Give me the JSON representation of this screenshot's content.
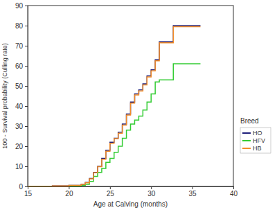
{
  "chart_data": {
    "type": "line",
    "x_label": "Age at Calving (months)",
    "y_label": "100 - Survival probability (Culling rate)",
    "legend_title": "Breed",
    "line_style": "step",
    "x": [
      15,
      18,
      20,
      21.5,
      22,
      22.5,
      23,
      23.5,
      24,
      24.5,
      25,
      25.5,
      26,
      26.5,
      27,
      27.5,
      28,
      28.5,
      29,
      29.5,
      30,
      30.5,
      31,
      32,
      32.7,
      36
    ],
    "series": [
      {
        "name": "HO",
        "color": "#1f1f7a",
        "values": [
          0,
          0.3,
          0.5,
          1,
          2,
          4,
          7,
          10,
          14,
          18,
          22,
          24,
          27,
          31,
          36,
          42,
          46,
          48,
          51,
          55,
          58,
          63,
          72,
          72,
          80,
          80
        ]
      },
      {
        "name": "HFV",
        "color": "#33cc33",
        "values": [
          0,
          0,
          0.3,
          0.5,
          1,
          2.5,
          5,
          7,
          9,
          12,
          14,
          17,
          20,
          24,
          28,
          31,
          33,
          35,
          38,
          42,
          46,
          52,
          53,
          53,
          61,
          61
        ]
      },
      {
        "name": "HB",
        "color": "#f28c28",
        "values": [
          0,
          0.3,
          0.5,
          1,
          1.8,
          3.8,
          6.8,
          9.8,
          13.5,
          17.5,
          21.5,
          23.8,
          26.5,
          30.5,
          35.5,
          41.5,
          45.5,
          47.5,
          50.5,
          54.5,
          57.5,
          62.5,
          71.5,
          71.5,
          79.5,
          79.5
        ]
      }
    ],
    "xlim": [
      15,
      40
    ],
    "xticks": [
      15,
      20,
      25,
      30,
      35,
      40
    ],
    "ylim": [
      0,
      90
    ],
    "yticks": [
      0,
      10,
      20,
      30,
      40,
      50,
      60,
      70,
      80,
      90
    ],
    "grid": false,
    "legend": "right"
  }
}
